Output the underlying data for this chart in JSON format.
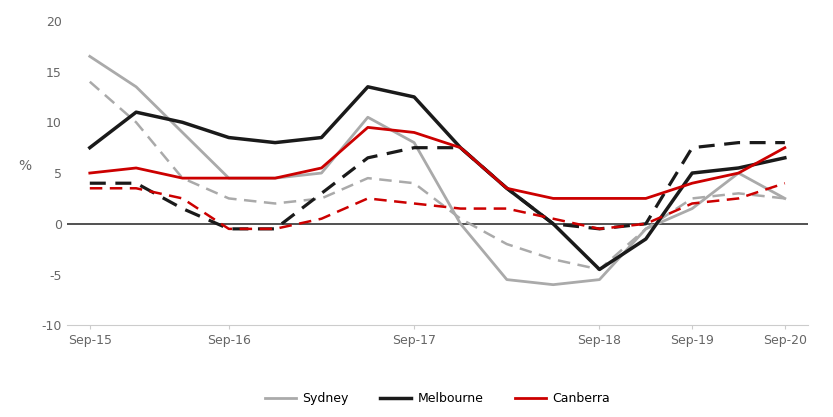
{
  "x_labels": [
    "Sep-15",
    "Sep-16",
    "Sep-17",
    "Sep-18",
    "Sep-19",
    "Sep-20"
  ],
  "sydney_solid": [
    16.5,
    13.5,
    9.0,
    4.5,
    4.5,
    5.0,
    10.5,
    8.0,
    0.0,
    -5.5,
    -6.0,
    -5.5,
    -0.5,
    1.5,
    5.0,
    2.5
  ],
  "sydney_dashed": [
    14.0,
    10.0,
    4.5,
    2.5,
    2.0,
    2.5,
    4.5,
    4.0,
    0.5,
    -2.0,
    -3.5,
    -4.5,
    -0.5,
    2.5,
    3.0,
    2.5
  ],
  "melbourne_solid": [
    7.5,
    11.0,
    10.0,
    8.5,
    8.0,
    8.5,
    13.5,
    12.5,
    7.5,
    3.5,
    0.0,
    -4.5,
    -1.5,
    5.0,
    5.5,
    6.5
  ],
  "melbourne_dashed": [
    4.0,
    4.0,
    1.5,
    -0.5,
    -0.5,
    3.0,
    6.5,
    7.5,
    7.5,
    3.5,
    0.0,
    -0.5,
    0.0,
    7.5,
    8.0,
    8.0
  ],
  "canberra_solid": [
    5.0,
    5.5,
    4.5,
    4.5,
    4.5,
    5.5,
    9.5,
    9.0,
    7.5,
    3.5,
    2.5,
    2.5,
    2.5,
    4.0,
    5.0,
    7.5
  ],
  "canberra_dashed": [
    3.5,
    3.5,
    2.5,
    -0.5,
    -0.5,
    0.5,
    2.5,
    2.0,
    1.5,
    1.5,
    0.5,
    -0.5,
    0.0,
    2.0,
    2.5,
    4.0
  ],
  "n_points": 16,
  "x_tick_indices": [
    0,
    3,
    7,
    11,
    13,
    15
  ],
  "ylim": [
    -10,
    20
  ],
  "yticks": [
    -10,
    -5,
    0,
    5,
    10,
    15,
    20
  ],
  "ylabel": "%",
  "sydney_color": "#aaaaaa",
  "melbourne_color": "#1a1a1a",
  "canberra_color": "#cc0000",
  "background_color": "#ffffff",
  "legend_labels": [
    "Sydney",
    "Melbourne",
    "Canberra"
  ]
}
